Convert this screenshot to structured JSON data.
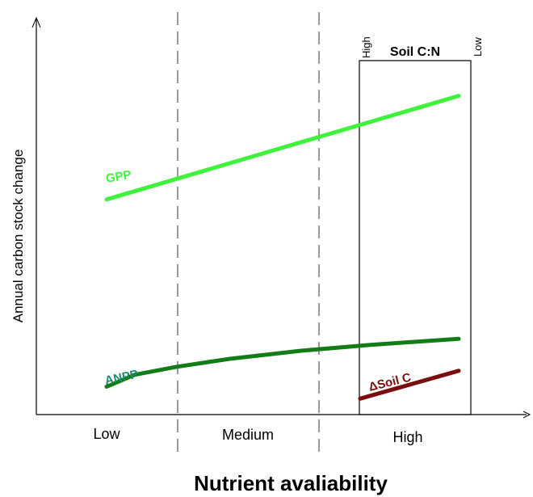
{
  "chart_data": {
    "type": "line",
    "ylabel": "Annual carbon stock change",
    "xlabel": "Nutrient avaliability",
    "x_categories": [
      "Low",
      "Medium",
      "High"
    ],
    "inset": {
      "title": "Soil C:N",
      "left_label": "High",
      "right_label": "Low"
    },
    "series": [
      {
        "name": "GPP",
        "color": "#3ff23c",
        "x": [
          0.0,
          1.0
        ],
        "y": [
          0.54,
          0.8
        ]
      },
      {
        "name": "ANPP",
        "color": "#127d17",
        "x": [
          0.0,
          0.08,
          0.2,
          0.35,
          0.55,
          0.75,
          1.0
        ],
        "y": [
          0.07,
          0.1,
          0.12,
          0.14,
          0.16,
          0.175,
          0.19
        ]
      },
      {
        "name": "ΔSoil C",
        "color": "#7a0d0d",
        "x": [
          0.72,
          1.0
        ],
        "y": [
          0.04,
          0.11
        ]
      }
    ]
  }
}
